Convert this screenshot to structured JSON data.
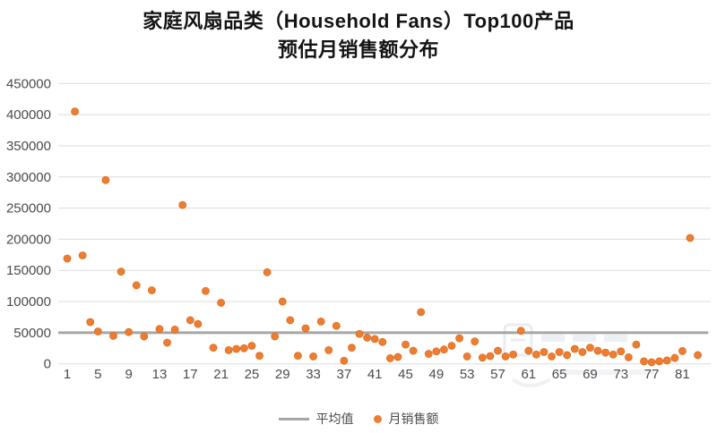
{
  "title": {
    "line1": "家庭风扇品类（Household Fans）Top100产品",
    "line2": "预估月销售额分布"
  },
  "legend": {
    "average_label": "平均值",
    "sales_label": "月销售额"
  },
  "colors": {
    "dot": "#ED7D31",
    "dot_edge": "#DE6A1C",
    "average_line": "#A6A6A6",
    "gridline": "#DCDCDC",
    "axis_text": "#4B4B4B"
  },
  "chart_data": {
    "type": "scatter",
    "title": "家庭风扇品类（Household Fans）Top100产品预估月销售额分布",
    "xlabel": "",
    "ylabel": "",
    "series_name": "月销售额",
    "average_name": "平均值",
    "average": 50000,
    "ylim": [
      0,
      450000
    ],
    "ytick_interval": 50000,
    "xticks": [
      1,
      5,
      9,
      13,
      17,
      21,
      25,
      29,
      33,
      37,
      41,
      45,
      49,
      53,
      57,
      61,
      65,
      69,
      73,
      77,
      81
    ],
    "grid": true,
    "legend_position": "bottom",
    "x": [
      1,
      2,
      3,
      4,
      5,
      6,
      7,
      8,
      9,
      10,
      11,
      12,
      13,
      14,
      15,
      16,
      17,
      18,
      19,
      20,
      21,
      22,
      23,
      24,
      25,
      26,
      27,
      28,
      29,
      30,
      31,
      32,
      33,
      34,
      35,
      36,
      37,
      38,
      39,
      40,
      41,
      42,
      43,
      44,
      45,
      46,
      47,
      48,
      49,
      50,
      51,
      52,
      53,
      54,
      55,
      56,
      57,
      58,
      59,
      60,
      61,
      62,
      63,
      64,
      65,
      66,
      67,
      68,
      69,
      70,
      71,
      72,
      73,
      74,
      75,
      76,
      77,
      78,
      79,
      80,
      81,
      82,
      83
    ],
    "values": [
      169000,
      405000,
      174000,
      67000,
      52000,
      295000,
      45000,
      148000,
      51000,
      126000,
      44000,
      118000,
      56000,
      34000,
      55000,
      255000,
      70000,
      64000,
      117000,
      26000,
      98000,
      22000,
      24000,
      25000,
      29000,
      13000,
      147000,
      44000,
      100000,
      70000,
      13000,
      57000,
      12000,
      68000,
      22000,
      61000,
      5000,
      26000,
      48000,
      42000,
      40000,
      35000,
      9000,
      11000,
      31000,
      21000,
      83000,
      16000,
      20000,
      23000,
      29000,
      41000,
      12000,
      36000,
      10000,
      12500,
      21000,
      12000,
      15000,
      53000,
      21000,
      15000,
      19000,
      12000,
      19000,
      14000,
      24000,
      19000,
      26000,
      21000,
      18000,
      15000,
      20000,
      10500,
      31000,
      4000,
      2500,
      4000,
      5500,
      9500,
      20500,
      202000,
      14000
    ]
  }
}
